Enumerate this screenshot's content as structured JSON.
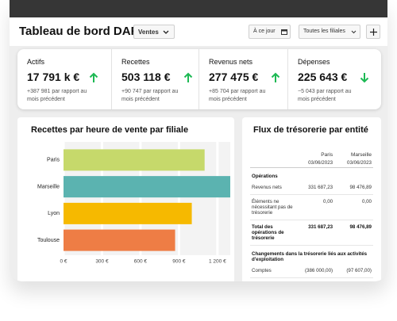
{
  "header": {
    "title": "Tableau de bord DAF",
    "view": "Ventes",
    "period": "À ce jour",
    "filter": "Toutes les filiales"
  },
  "kpis": [
    {
      "label": "Actifs",
      "value": "17 791 k €",
      "trend": "up",
      "change": "+387 981 par rapport au mois précédent"
    },
    {
      "label": "Recettes",
      "value": "503 118 €",
      "trend": "up",
      "change": "+90 747 par rapport au mois précédent"
    },
    {
      "label": "Revenus nets",
      "value": "277 475 €",
      "trend": "up",
      "change": "+85 704 par rapport au mois précédent"
    },
    {
      "label": "Dépenses",
      "value": "225 643 €",
      "trend": "down",
      "change": "−5 043 par rapport au mois précédent"
    }
  ],
  "chart_data": {
    "type": "bar",
    "orientation": "horizontal",
    "title": "Recettes par heure de vente par filiale",
    "categories": [
      "Paris",
      "Marseille",
      "Lyon",
      "Toulouse"
    ],
    "values": [
      1100,
      1300,
      1000,
      870
    ],
    "colors": [
      "#c6d96b",
      "#5bb3b0",
      "#f6b900",
      "#ee7d45"
    ],
    "xlim": [
      0,
      1300
    ],
    "xticks": [
      {
        "value": 0,
        "label": "0 €"
      },
      {
        "value": 300,
        "label": "300 €"
      },
      {
        "value": 600,
        "label": "600 €"
      },
      {
        "value": 900,
        "label": "900 €"
      },
      {
        "value": 1200,
        "label": "1 200 €"
      }
    ]
  },
  "table": {
    "title": "Flux de trésorerie par entité",
    "columns": [
      {
        "name": "Paris",
        "date": "03/06/2023"
      },
      {
        "name": "Marseille",
        "date": "03/06/2023"
      }
    ],
    "sections": [
      {
        "title": "Opérations",
        "rows": [
          {
            "label": "Revenus nets",
            "values": [
              "331 687,23",
              "98 476,89"
            ],
            "total": false
          },
          {
            "label": "Éléments ne nécessitant pas de trésorerie",
            "values": [
              "0,00",
              "0,00"
            ],
            "total": false
          },
          {
            "label": "Total des opérations de trésorerie",
            "values": [
              "331 687,23",
              "98 476,89"
            ],
            "total": true
          }
        ]
      },
      {
        "title": "Changements dans la trésorerie liés aux activités d'exploitation",
        "rows": [
          {
            "label": "Comptes",
            "values": [
              "(386 000,00)",
              "(97 607,00)"
            ],
            "total": false
          }
        ]
      }
    ]
  }
}
